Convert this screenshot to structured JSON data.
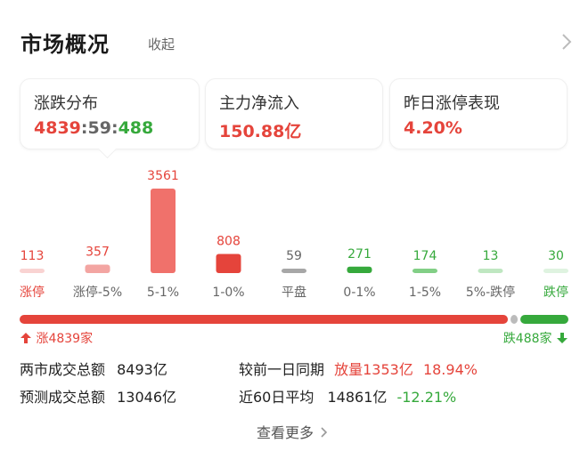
{
  "header": {
    "title": "市场概况",
    "collapse_label": "收起"
  },
  "cards": [
    {
      "label": "涨跌分布",
      "up": "4839",
      "sep1": ":",
      "flat": "59",
      "sep2": ":",
      "down": "488"
    },
    {
      "label": "主力净流入",
      "value": "150.88亿"
    },
    {
      "label": "昨日涨停表现",
      "value": "4.20%"
    }
  ],
  "chart_data": {
    "type": "bar",
    "categories": [
      "涨停",
      "涨停-5%",
      "5-1%",
      "1-0%",
      "平盘",
      "0-1%",
      "1-5%",
      "5%-跌停",
      "跌停"
    ],
    "values": [
      113,
      357,
      3561,
      808,
      59,
      271,
      174,
      13,
      30
    ],
    "colors": [
      "#f9d3d2",
      "#f3a5a2",
      "#f0716b",
      "#e5443b",
      "#a7a7a7",
      "#36a93c",
      "#82cf86",
      "#bfe7c1",
      "#dff3e0"
    ],
    "label_colors": [
      "#e5443b",
      "#e5443b",
      "#e5443b",
      "#e5443b",
      "#666666",
      "#36a93c",
      "#36a93c",
      "#36a93c",
      "#36a93c"
    ],
    "category_colors": [
      "#e5443b",
      "#666666",
      "#666666",
      "#666666",
      "#666666",
      "#666666",
      "#666666",
      "#666666",
      "#36a93c"
    ],
    "ylim": [
      0,
      3561
    ]
  },
  "distribution": {
    "up_value": 4839,
    "flat_value": 59,
    "down_value": 488,
    "up_color": "#e5443b",
    "flat_color": "#bbbbbb",
    "down_color": "#36a93c",
    "up_label": "涨4839家",
    "down_label": "跌488家"
  },
  "turnover": {
    "total_label": "两市成交总额",
    "total_value": "8493亿",
    "forecast_label": "预测成交总额",
    "forecast_value": "13046亿",
    "compare_label": "较前一日同期",
    "compare_value": "放量1353亿",
    "compare_pct": "18.94%",
    "avg_label": "近60日平均",
    "avg_value": "14861亿",
    "avg_pct": "-12.21%"
  },
  "footer": {
    "more_label": "查看更多"
  }
}
